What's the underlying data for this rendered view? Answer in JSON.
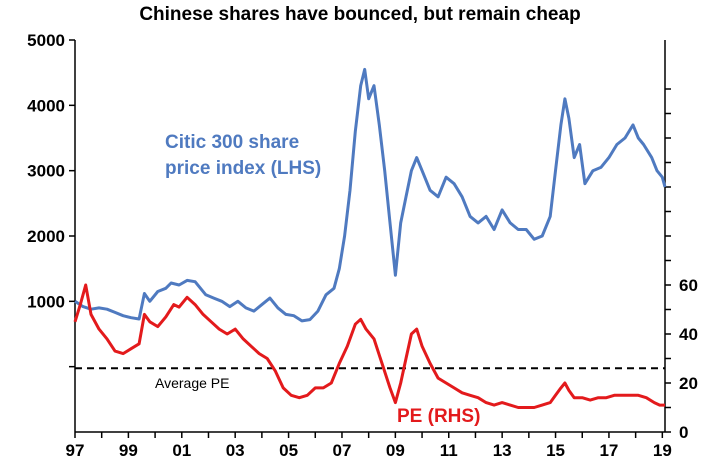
{
  "chart_data": {
    "type": "line",
    "title": "Chinese  shares have bounced, but remain cheap",
    "x_tick_labels": [
      "97",
      "99",
      "01",
      "03",
      "05",
      "07",
      "09",
      "11",
      "13",
      "15",
      "17",
      "19"
    ],
    "x_range": [
      1997.0,
      2019.1
    ],
    "left_axis": {
      "ticks": [
        1000,
        2000,
        3000,
        4000,
        5000
      ],
      "range": [
        -1000,
        5000
      ]
    },
    "right_axis": {
      "ticks": [
        0,
        20,
        40,
        60
      ],
      "range": [
        0,
        160
      ]
    },
    "grid": false,
    "series": [
      {
        "name": "Citic 300 share price index (LHS)",
        "axis": "left",
        "color": "#4f7ac0",
        "points": [
          [
            1997.0,
            1000
          ],
          [
            1997.3,
            920
          ],
          [
            1997.6,
            880
          ],
          [
            1997.9,
            900
          ],
          [
            1998.2,
            880
          ],
          [
            1998.5,
            830
          ],
          [
            1998.8,
            780
          ],
          [
            1999.1,
            750
          ],
          [
            1999.4,
            730
          ],
          [
            1999.6,
            1120
          ],
          [
            1999.8,
            1000
          ],
          [
            2000.1,
            1150
          ],
          [
            2000.4,
            1200
          ],
          [
            2000.6,
            1280
          ],
          [
            2000.9,
            1250
          ],
          [
            2001.2,
            1320
          ],
          [
            2001.5,
            1300
          ],
          [
            2001.7,
            1200
          ],
          [
            2001.9,
            1100
          ],
          [
            2002.2,
            1050
          ],
          [
            2002.5,
            1000
          ],
          [
            2002.8,
            920
          ],
          [
            2003.1,
            1000
          ],
          [
            2003.4,
            900
          ],
          [
            2003.7,
            850
          ],
          [
            2004.0,
            950
          ],
          [
            2004.3,
            1050
          ],
          [
            2004.6,
            900
          ],
          [
            2004.9,
            800
          ],
          [
            2005.2,
            780
          ],
          [
            2005.5,
            700
          ],
          [
            2005.8,
            720
          ],
          [
            2006.1,
            850
          ],
          [
            2006.4,
            1100
          ],
          [
            2006.7,
            1200
          ],
          [
            2006.9,
            1500
          ],
          [
            2007.1,
            2000
          ],
          [
            2007.3,
            2700
          ],
          [
            2007.5,
            3600
          ],
          [
            2007.7,
            4300
          ],
          [
            2007.85,
            4550
          ],
          [
            2008.0,
            4100
          ],
          [
            2008.2,
            4300
          ],
          [
            2008.4,
            3700
          ],
          [
            2008.6,
            3000
          ],
          [
            2008.8,
            2200
          ],
          [
            2009.0,
            1400
          ],
          [
            2009.2,
            2200
          ],
          [
            2009.4,
            2600
          ],
          [
            2009.6,
            3000
          ],
          [
            2009.8,
            3200
          ],
          [
            2010.0,
            3000
          ],
          [
            2010.3,
            2700
          ],
          [
            2010.6,
            2600
          ],
          [
            2010.9,
            2900
          ],
          [
            2011.2,
            2800
          ],
          [
            2011.5,
            2600
          ],
          [
            2011.8,
            2300
          ],
          [
            2012.1,
            2200
          ],
          [
            2012.4,
            2300
          ],
          [
            2012.7,
            2100
          ],
          [
            2013.0,
            2400
          ],
          [
            2013.3,
            2200
          ],
          [
            2013.6,
            2100
          ],
          [
            2013.9,
            2100
          ],
          [
            2014.2,
            1950
          ],
          [
            2014.5,
            2000
          ],
          [
            2014.8,
            2300
          ],
          [
            2015.0,
            3000
          ],
          [
            2015.2,
            3700
          ],
          [
            2015.35,
            4100
          ],
          [
            2015.5,
            3800
          ],
          [
            2015.7,
            3200
          ],
          [
            2015.9,
            3400
          ],
          [
            2016.1,
            2800
          ],
          [
            2016.4,
            3000
          ],
          [
            2016.7,
            3050
          ],
          [
            2017.0,
            3200
          ],
          [
            2017.3,
            3400
          ],
          [
            2017.6,
            3500
          ],
          [
            2017.9,
            3700
          ],
          [
            2018.1,
            3500
          ],
          [
            2018.3,
            3400
          ],
          [
            2018.6,
            3200
          ],
          [
            2018.8,
            3000
          ],
          [
            2019.0,
            2900
          ],
          [
            2019.1,
            2750
          ]
        ]
      },
      {
        "name": "PE (RHS)",
        "axis": "right",
        "color": "#e31a1c",
        "points": [
          [
            1997.0,
            45
          ],
          [
            1997.2,
            52
          ],
          [
            1997.4,
            60
          ],
          [
            1997.6,
            48
          ],
          [
            1997.9,
            42
          ],
          [
            1998.2,
            38
          ],
          [
            1998.5,
            33
          ],
          [
            1998.8,
            32
          ],
          [
            1999.1,
            34
          ],
          [
            1999.4,
            36
          ],
          [
            1999.6,
            48
          ],
          [
            1999.8,
            45
          ],
          [
            2000.1,
            43
          ],
          [
            2000.4,
            47
          ],
          [
            2000.7,
            52
          ],
          [
            2000.9,
            51
          ],
          [
            2001.2,
            55
          ],
          [
            2001.5,
            52
          ],
          [
            2001.8,
            48
          ],
          [
            2002.1,
            45
          ],
          [
            2002.4,
            42
          ],
          [
            2002.7,
            40
          ],
          [
            2003.0,
            42
          ],
          [
            2003.3,
            38
          ],
          [
            2003.6,
            35
          ],
          [
            2003.9,
            32
          ],
          [
            2004.2,
            30
          ],
          [
            2004.5,
            25
          ],
          [
            2004.8,
            18
          ],
          [
            2005.1,
            15
          ],
          [
            2005.4,
            14
          ],
          [
            2005.7,
            15
          ],
          [
            2006.0,
            18
          ],
          [
            2006.3,
            18
          ],
          [
            2006.6,
            20
          ],
          [
            2006.9,
            28
          ],
          [
            2007.2,
            35
          ],
          [
            2007.5,
            44
          ],
          [
            2007.7,
            46
          ],
          [
            2007.9,
            42
          ],
          [
            2008.2,
            38
          ],
          [
            2008.5,
            28
          ],
          [
            2008.8,
            18
          ],
          [
            2009.0,
            12
          ],
          [
            2009.2,
            20
          ],
          [
            2009.4,
            30
          ],
          [
            2009.6,
            40
          ],
          [
            2009.8,
            42
          ],
          [
            2010.0,
            35
          ],
          [
            2010.3,
            28
          ],
          [
            2010.6,
            22
          ],
          [
            2010.9,
            20
          ],
          [
            2011.2,
            18
          ],
          [
            2011.5,
            16
          ],
          [
            2011.8,
            15
          ],
          [
            2012.1,
            14
          ],
          [
            2012.4,
            12
          ],
          [
            2012.7,
            11
          ],
          [
            2013.0,
            12
          ],
          [
            2013.3,
            11
          ],
          [
            2013.6,
            10
          ],
          [
            2013.9,
            10
          ],
          [
            2014.2,
            10
          ],
          [
            2014.5,
            11
          ],
          [
            2014.8,
            12
          ],
          [
            2015.0,
            15
          ],
          [
            2015.2,
            18
          ],
          [
            2015.35,
            20
          ],
          [
            2015.5,
            17
          ],
          [
            2015.7,
            14
          ],
          [
            2016.0,
            14
          ],
          [
            2016.3,
            13
          ],
          [
            2016.6,
            14
          ],
          [
            2016.9,
            14
          ],
          [
            2017.2,
            15
          ],
          [
            2017.5,
            15
          ],
          [
            2017.8,
            15
          ],
          [
            2018.1,
            15
          ],
          [
            2018.4,
            14
          ],
          [
            2018.7,
            12
          ],
          [
            2018.9,
            11
          ],
          [
            2019.1,
            11
          ]
        ]
      }
    ],
    "reference_line": {
      "label": "Average PE",
      "value": 26,
      "axis": "right",
      "style": "dashed",
      "color": "#000000"
    },
    "annotations": [
      {
        "text": "Citic 300 share",
        "color": "#4f7ac0"
      },
      {
        "text": "price index (LHS)",
        "color": "#4f7ac0"
      },
      {
        "text": "PE (RHS)",
        "color": "#e31a1c"
      },
      {
        "text": "Average PE",
        "color": "#000000"
      }
    ]
  }
}
